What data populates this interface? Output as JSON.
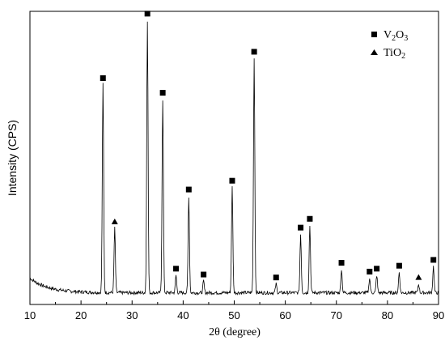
{
  "chart_data": {
    "type": "line",
    "xlabel": "2θ (degree)",
    "ylabel": "Intensity (CPS)",
    "xlim": [
      10,
      90
    ],
    "x_ticks": [
      10,
      20,
      30,
      40,
      50,
      60,
      70,
      80,
      90
    ],
    "y_ticks_shown": false,
    "grid": false,
    "legend_position": "top-right",
    "legend": [
      {
        "marker": "square",
        "base": "V",
        "sub1": "2",
        "mid": "O",
        "sub2": "3"
      },
      {
        "marker": "triangle",
        "base": "TiO",
        "sub1": "2",
        "mid": "",
        "sub2": ""
      }
    ],
    "pattern": {
      "baseline_relative": 0.04,
      "low_angle_rise": 0.05,
      "peaks": [
        {
          "x": 24.3,
          "height": 0.71,
          "phase": "V2O3"
        },
        {
          "x": 26.6,
          "height": 0.22,
          "phase": "TiO2"
        },
        {
          "x": 33.0,
          "height": 0.93,
          "phase": "V2O3"
        },
        {
          "x": 36.0,
          "height": 0.66,
          "phase": "V2O3"
        },
        {
          "x": 38.6,
          "height": 0.06,
          "phase": "V2O3"
        },
        {
          "x": 41.1,
          "height": 0.33,
          "phase": "V2O3"
        },
        {
          "x": 44.0,
          "height": 0.04,
          "phase": "V2O3"
        },
        {
          "x": 49.6,
          "height": 0.36,
          "phase": "V2O3"
        },
        {
          "x": 53.9,
          "height": 0.8,
          "phase": "V2O3"
        },
        {
          "x": 58.2,
          "height": 0.03,
          "phase": "V2O3"
        },
        {
          "x": 63.0,
          "height": 0.2,
          "phase": "V2O3"
        },
        {
          "x": 64.8,
          "height": 0.23,
          "phase": "V2O3"
        },
        {
          "x": 71.0,
          "height": 0.08,
          "phase": "V2O3"
        },
        {
          "x": 76.5,
          "height": 0.05,
          "phase": "V2O3"
        },
        {
          "x": 77.9,
          "height": 0.06,
          "phase": "V2O3"
        },
        {
          "x": 82.3,
          "height": 0.07,
          "phase": "V2O3"
        },
        {
          "x": 86.1,
          "height": 0.03,
          "phase": "TiO2"
        },
        {
          "x": 89.0,
          "height": 0.09,
          "phase": "V2O3"
        }
      ]
    }
  }
}
